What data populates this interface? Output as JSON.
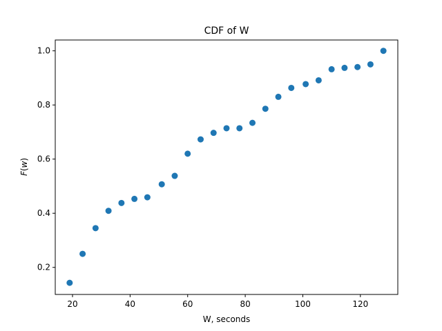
{
  "chart_data": {
    "type": "scatter",
    "title": "CDF of W",
    "xlabel": "W, seconds",
    "ylabel": "F(w)",
    "ylabel_func": "F",
    "ylabel_var": "w",
    "xlim": [
      14,
      133
    ],
    "ylim": [
      0.1,
      1.04
    ],
    "xticks": [
      20,
      40,
      60,
      80,
      100,
      120
    ],
    "yticks": [
      0.2,
      0.4,
      0.6,
      0.8,
      1.0
    ],
    "ytick_labels": [
      "0.2",
      "0.4",
      "0.6",
      "0.8",
      "1.0"
    ],
    "grid": false,
    "marker_color": "#1f77b4",
    "series": [
      {
        "x": [
          19,
          23.5,
          28,
          32.5,
          37,
          41.5,
          46,
          51,
          55.5,
          60,
          64.5,
          69,
          73.5,
          78,
          82.5,
          87,
          91.5,
          96,
          101,
          105.5,
          110,
          114.5,
          119,
          123.5,
          128
        ],
        "y": [
          0.143,
          0.25,
          0.345,
          0.409,
          0.438,
          0.453,
          0.459,
          0.507,
          0.538,
          0.62,
          0.673,
          0.697,
          0.714,
          0.714,
          0.734,
          0.786,
          0.83,
          0.863,
          0.877,
          0.891,
          0.932,
          0.937,
          0.94,
          0.95,
          1.0
        ]
      }
    ]
  }
}
